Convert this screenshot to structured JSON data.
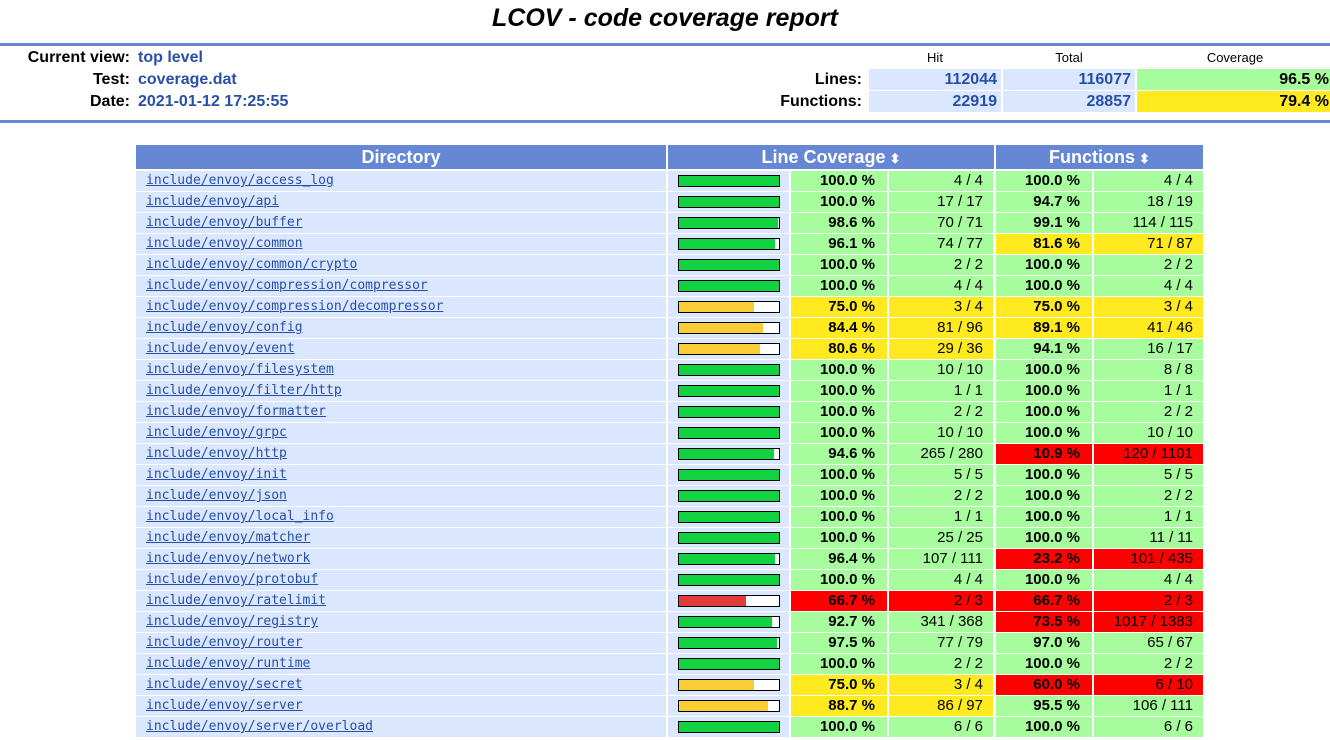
{
  "title": "LCOV - code coverage report",
  "header": {
    "current_view_label": "Current view:",
    "current_view": "top level",
    "test_label": "Test:",
    "test": "coverage.dat",
    "date_label": "Date:",
    "date": "2021-01-12 17:25:55",
    "col_hit": "Hit",
    "col_total": "Total",
    "col_coverage": "Coverage",
    "lines_label": "Lines:",
    "lines_hit": "112044",
    "lines_total": "116077",
    "lines_cov": "96.5 %",
    "functions_label": "Functions:",
    "functions_hit": "22919",
    "functions_total": "28857",
    "functions_cov": "79.4 %"
  },
  "table": {
    "col_directory": "Directory",
    "col_line_coverage": "Line Coverage",
    "col_functions": "Functions",
    "sort_icon": "⬍",
    "rows": [
      {
        "dir": "include/envoy/access_log",
        "lpct": "100.0 %",
        "lcnt": "4 / 4",
        "lfrac": 1.0,
        "lclass": "hi",
        "fpct": "100.0 %",
        "fcnt": "4 / 4",
        "fclass": "hi"
      },
      {
        "dir": "include/envoy/api",
        "lpct": "100.0 %",
        "lcnt": "17 / 17",
        "lfrac": 1.0,
        "lclass": "hi",
        "fpct": "94.7 %",
        "fcnt": "18 / 19",
        "fclass": "hi"
      },
      {
        "dir": "include/envoy/buffer",
        "lpct": "98.6 %",
        "lcnt": "70 / 71",
        "lfrac": 0.986,
        "lclass": "hi",
        "fpct": "99.1 %",
        "fcnt": "114 / 115",
        "fclass": "hi"
      },
      {
        "dir": "include/envoy/common",
        "lpct": "96.1 %",
        "lcnt": "74 / 77",
        "lfrac": 0.961,
        "lclass": "hi",
        "fpct": "81.6 %",
        "fcnt": "71 / 87",
        "fclass": "med"
      },
      {
        "dir": "include/envoy/common/crypto",
        "lpct": "100.0 %",
        "lcnt": "2 / 2",
        "lfrac": 1.0,
        "lclass": "hi",
        "fpct": "100.0 %",
        "fcnt": "2 / 2",
        "fclass": "hi"
      },
      {
        "dir": "include/envoy/compression/compressor",
        "lpct": "100.0 %",
        "lcnt": "4 / 4",
        "lfrac": 1.0,
        "lclass": "hi",
        "fpct": "100.0 %",
        "fcnt": "4 / 4",
        "fclass": "hi"
      },
      {
        "dir": "include/envoy/compression/decompressor",
        "lpct": "75.0 %",
        "lcnt": "3 / 4",
        "lfrac": 0.75,
        "lclass": "med",
        "fpct": "75.0 %",
        "fcnt": "3 / 4",
        "fclass": "med"
      },
      {
        "dir": "include/envoy/config",
        "lpct": "84.4 %",
        "lcnt": "81 / 96",
        "lfrac": 0.844,
        "lclass": "med",
        "fpct": "89.1 %",
        "fcnt": "41 / 46",
        "fclass": "med"
      },
      {
        "dir": "include/envoy/event",
        "lpct": "80.6 %",
        "lcnt": "29 / 36",
        "lfrac": 0.806,
        "lclass": "med",
        "fpct": "94.1 %",
        "fcnt": "16 / 17",
        "fclass": "hi"
      },
      {
        "dir": "include/envoy/filesystem",
        "lpct": "100.0 %",
        "lcnt": "10 / 10",
        "lfrac": 1.0,
        "lclass": "hi",
        "fpct": "100.0 %",
        "fcnt": "8 / 8",
        "fclass": "hi"
      },
      {
        "dir": "include/envoy/filter/http",
        "lpct": "100.0 %",
        "lcnt": "1 / 1",
        "lfrac": 1.0,
        "lclass": "hi",
        "fpct": "100.0 %",
        "fcnt": "1 / 1",
        "fclass": "hi"
      },
      {
        "dir": "include/envoy/formatter",
        "lpct": "100.0 %",
        "lcnt": "2 / 2",
        "lfrac": 1.0,
        "lclass": "hi",
        "fpct": "100.0 %",
        "fcnt": "2 / 2",
        "fclass": "hi"
      },
      {
        "dir": "include/envoy/grpc",
        "lpct": "100.0 %",
        "lcnt": "10 / 10",
        "lfrac": 1.0,
        "lclass": "hi",
        "fpct": "100.0 %",
        "fcnt": "10 / 10",
        "fclass": "hi"
      },
      {
        "dir": "include/envoy/http",
        "lpct": "94.6 %",
        "lcnt": "265 / 280",
        "lfrac": 0.946,
        "lclass": "hi",
        "fpct": "10.9 %",
        "fcnt": "120 / 1101",
        "fclass": "lo"
      },
      {
        "dir": "include/envoy/init",
        "lpct": "100.0 %",
        "lcnt": "5 / 5",
        "lfrac": 1.0,
        "lclass": "hi",
        "fpct": "100.0 %",
        "fcnt": "5 / 5",
        "fclass": "hi"
      },
      {
        "dir": "include/envoy/json",
        "lpct": "100.0 %",
        "lcnt": "2 / 2",
        "lfrac": 1.0,
        "lclass": "hi",
        "fpct": "100.0 %",
        "fcnt": "2 / 2",
        "fclass": "hi"
      },
      {
        "dir": "include/envoy/local_info",
        "lpct": "100.0 %",
        "lcnt": "1 / 1",
        "lfrac": 1.0,
        "lclass": "hi",
        "fpct": "100.0 %",
        "fcnt": "1 / 1",
        "fclass": "hi"
      },
      {
        "dir": "include/envoy/matcher",
        "lpct": "100.0 %",
        "lcnt": "25 / 25",
        "lfrac": 1.0,
        "lclass": "hi",
        "fpct": "100.0 %",
        "fcnt": "11 / 11",
        "fclass": "hi"
      },
      {
        "dir": "include/envoy/network",
        "lpct": "96.4 %",
        "lcnt": "107 / 111",
        "lfrac": 0.964,
        "lclass": "hi",
        "fpct": "23.2 %",
        "fcnt": "101 / 435",
        "fclass": "lo"
      },
      {
        "dir": "include/envoy/protobuf",
        "lpct": "100.0 %",
        "lcnt": "4 / 4",
        "lfrac": 1.0,
        "lclass": "hi",
        "fpct": "100.0 %",
        "fcnt": "4 / 4",
        "fclass": "hi"
      },
      {
        "dir": "include/envoy/ratelimit",
        "lpct": "66.7 %",
        "lcnt": "2 / 3",
        "lfrac": 0.667,
        "lclass": "lo",
        "fpct": "66.7 %",
        "fcnt": "2 / 3",
        "fclass": "lo"
      },
      {
        "dir": "include/envoy/registry",
        "lpct": "92.7 %",
        "lcnt": "341 / 368",
        "lfrac": 0.927,
        "lclass": "hi",
        "fpct": "73.5 %",
        "fcnt": "1017 / 1383",
        "fclass": "lo"
      },
      {
        "dir": "include/envoy/router",
        "lpct": "97.5 %",
        "lcnt": "77 / 79",
        "lfrac": 0.975,
        "lclass": "hi",
        "fpct": "97.0 %",
        "fcnt": "65 / 67",
        "fclass": "hi"
      },
      {
        "dir": "include/envoy/runtime",
        "lpct": "100.0 %",
        "lcnt": "2 / 2",
        "lfrac": 1.0,
        "lclass": "hi",
        "fpct": "100.0 %",
        "fcnt": "2 / 2",
        "fclass": "hi"
      },
      {
        "dir": "include/envoy/secret",
        "lpct": "75.0 %",
        "lcnt": "3 / 4",
        "lfrac": 0.75,
        "lclass": "med",
        "fpct": "60.0 %",
        "fcnt": "6 / 10",
        "fclass": "lo"
      },
      {
        "dir": "include/envoy/server",
        "lpct": "88.7 %",
        "lcnt": "86 / 97",
        "lfrac": 0.887,
        "lclass": "med",
        "fpct": "95.5 %",
        "fcnt": "106 / 111",
        "fclass": "hi"
      },
      {
        "dir": "include/envoy/server/overload",
        "lpct": "100.0 %",
        "lcnt": "6 / 6",
        "lfrac": 1.0,
        "lclass": "hi",
        "fpct": "100.0 %",
        "fcnt": "6 / 6",
        "fclass": "hi"
      }
    ]
  },
  "colors": {
    "header_blue": "#6688d4",
    "link_blue": "#284fa8",
    "cell_blue": "#dae7fe",
    "hi": "#a7fc9d",
    "med": "#ffea20",
    "lo": "#ff0000",
    "bar_hi": "#13d241",
    "bar_med": "#f8cd36",
    "bar_lo": "#e33a3a"
  }
}
